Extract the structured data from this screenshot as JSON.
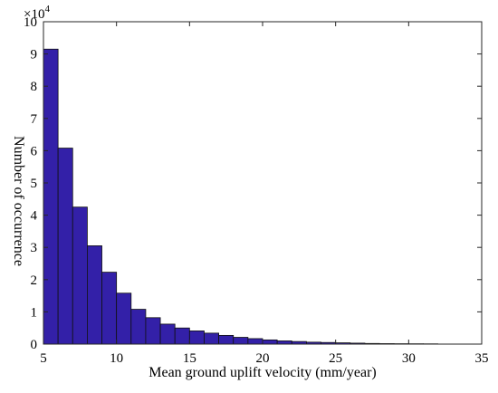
{
  "chart_data": {
    "type": "bar",
    "title": "",
    "xlabel": "Mean ground uplift velocity (mm/year)",
    "ylabel": "Number of occurrence",
    "y_multiplier_label": "×10",
    "y_multiplier_exponent": "4",
    "xlim": [
      5,
      35
    ],
    "ylim": [
      0,
      10
    ],
    "x_ticks": [
      "5",
      "10",
      "15",
      "20",
      "25",
      "30",
      "35"
    ],
    "y_ticks": [
      "0",
      "1",
      "2",
      "3",
      "4",
      "5",
      "6",
      "7",
      "8",
      "9",
      "10"
    ],
    "grid": false,
    "bar_color": "#3320A8",
    "bins": [
      {
        "start": 5.0,
        "end": 6.0,
        "value": 9.15
      },
      {
        "start": 6.0,
        "end": 7.0,
        "value": 6.08
      },
      {
        "start": 7.0,
        "end": 8.0,
        "value": 4.25
      },
      {
        "start": 8.0,
        "end": 9.0,
        "value": 3.05
      },
      {
        "start": 9.0,
        "end": 10.0,
        "value": 2.23
      },
      {
        "start": 10.0,
        "end": 11.0,
        "value": 1.58
      },
      {
        "start": 11.0,
        "end": 12.0,
        "value": 1.08
      },
      {
        "start": 12.0,
        "end": 13.0,
        "value": 0.82
      },
      {
        "start": 13.0,
        "end": 14.0,
        "value": 0.62
      },
      {
        "start": 14.0,
        "end": 15.0,
        "value": 0.5
      },
      {
        "start": 15.0,
        "end": 16.0,
        "value": 0.41
      },
      {
        "start": 16.0,
        "end": 17.0,
        "value": 0.34
      },
      {
        "start": 17.0,
        "end": 18.0,
        "value": 0.27
      },
      {
        "start": 18.0,
        "end": 19.0,
        "value": 0.21
      },
      {
        "start": 19.0,
        "end": 20.0,
        "value": 0.17
      },
      {
        "start": 20.0,
        "end": 21.0,
        "value": 0.13
      },
      {
        "start": 21.0,
        "end": 22.0,
        "value": 0.1
      },
      {
        "start": 22.0,
        "end": 23.0,
        "value": 0.08
      },
      {
        "start": 23.0,
        "end": 24.0,
        "value": 0.06
      },
      {
        "start": 24.0,
        "end": 25.0,
        "value": 0.05
      },
      {
        "start": 25.0,
        "end": 26.0,
        "value": 0.04
      },
      {
        "start": 26.0,
        "end": 27.0,
        "value": 0.03
      },
      {
        "start": 27.0,
        "end": 28.0,
        "value": 0.02
      },
      {
        "start": 28.0,
        "end": 29.0,
        "value": 0.015
      },
      {
        "start": 29.0,
        "end": 30.0,
        "value": 0.012
      },
      {
        "start": 30.0,
        "end": 31.0,
        "value": 0.01
      },
      {
        "start": 31.0,
        "end": 32.0,
        "value": 0.008
      }
    ]
  }
}
